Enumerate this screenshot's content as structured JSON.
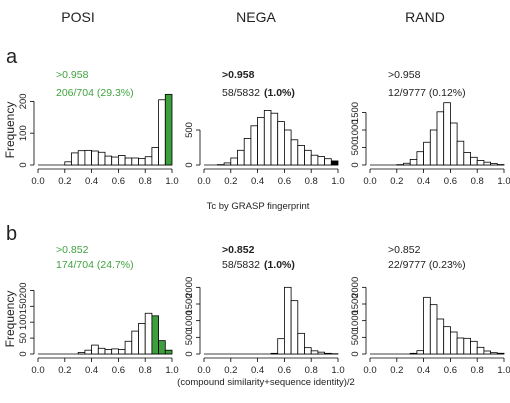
{
  "column_titles": [
    "POSI",
    "NEGA",
    "RAND"
  ],
  "row_labels": [
    "a",
    "b"
  ],
  "row_xlabels": [
    "Tc by GRASP fingerprint",
    "(compound similarity+sequence identity)/2"
  ],
  "colors": {
    "normal": "#ffffff",
    "highlight": "#3d9e3d",
    "nega_highlight": "#000000",
    "stroke": "#000000",
    "green_text": "#3fa33f"
  },
  "chart_data": [
    {
      "type": "bar",
      "row": "a",
      "column": "POSI",
      "threshold_label": ">0.958",
      "count_label": "206/704 (29.3%)",
      "text_color": "green",
      "bold_pct": false,
      "ylabel": "Frequency",
      "ylim": [
        0,
        220
      ],
      "yticks": [
        0,
        100,
        200
      ],
      "xlim": [
        0,
        1
      ],
      "xticks": [
        "0.0",
        "0.2",
        "0.4",
        "0.6",
        "0.8",
        "1.0"
      ],
      "bin_width": 0.05,
      "bin_starts": [
        0.0,
        0.05,
        0.1,
        0.15,
        0.2,
        0.25,
        0.3,
        0.35,
        0.4,
        0.45,
        0.5,
        0.55,
        0.6,
        0.65,
        0.7,
        0.75,
        0.8,
        0.85,
        0.9,
        0.95
      ],
      "values": [
        0,
        0,
        0,
        0,
        10,
        38,
        45,
        46,
        44,
        40,
        28,
        25,
        30,
        22,
        22,
        20,
        26,
        55,
        205,
        222
      ],
      "highlight_bins": [
        19
      ],
      "highlight_color": "highlight"
    },
    {
      "type": "bar",
      "row": "a",
      "column": "NEGA",
      "threshold_label": ">0.958",
      "count_label": "58/5832",
      "pct_label": "(1.0%)",
      "text_color": "black",
      "bold_pct": true,
      "ylabel": "",
      "ylim": [
        0,
        1000
      ],
      "yticks": [
        0,
        500
      ],
      "xlim": [
        0,
        1
      ],
      "xticks": [
        "0.0",
        "0.2",
        "0.4",
        "0.6",
        "0.8",
        "1.0"
      ],
      "bin_width": 0.05,
      "bin_starts": [
        0.0,
        0.05,
        0.1,
        0.15,
        0.2,
        0.25,
        0.3,
        0.35,
        0.4,
        0.45,
        0.5,
        0.55,
        0.6,
        0.65,
        0.7,
        0.75,
        0.8,
        0.85,
        0.9,
        0.95
      ],
      "values": [
        0,
        0,
        5,
        30,
        100,
        210,
        380,
        560,
        680,
        780,
        740,
        620,
        500,
        360,
        280,
        210,
        140,
        120,
        90,
        58
      ],
      "highlight_bins": [
        19
      ],
      "highlight_color": "nega_highlight"
    },
    {
      "type": "bar",
      "row": "a",
      "column": "RAND",
      "threshold_label": ">0.958",
      "count_label": "12/9777 (0.12%)",
      "text_color": "black",
      "bold_pct": false,
      "ylabel": "",
      "ylim": [
        0,
        2000
      ],
      "yticks": [
        0,
        500,
        1000,
        1500
      ],
      "xlim": [
        0,
        1
      ],
      "xticks": [
        "0.0",
        "0.2",
        "0.4",
        "0.6",
        "0.8",
        "1.0"
      ],
      "bin_width": 0.05,
      "bin_starts": [
        0.0,
        0.05,
        0.1,
        0.15,
        0.2,
        0.25,
        0.3,
        0.35,
        0.4,
        0.45,
        0.5,
        0.55,
        0.6,
        0.65,
        0.7,
        0.75,
        0.8,
        0.85,
        0.9,
        0.95
      ],
      "values": [
        0,
        0,
        0,
        0,
        10,
        50,
        160,
        380,
        650,
        1000,
        1520,
        1780,
        1200,
        680,
        360,
        220,
        130,
        80,
        40,
        12
      ],
      "highlight_bins": [],
      "highlight_color": "highlight"
    },
    {
      "type": "bar",
      "row": "b",
      "column": "POSI",
      "threshold_label": ">0.852",
      "count_label": "174/704 (24.7%)",
      "text_color": "green",
      "bold_pct": false,
      "ylabel": "Frequency",
      "ylim": [
        0,
        220
      ],
      "yticks": [
        0,
        50,
        100,
        150,
        200
      ],
      "xlim": [
        0,
        1
      ],
      "xticks": [
        "0.0",
        "0.2",
        "0.4",
        "0.6",
        "0.8",
        "1.0"
      ],
      "bin_width": 0.05,
      "bin_starts": [
        0.0,
        0.05,
        0.1,
        0.15,
        0.2,
        0.25,
        0.3,
        0.35,
        0.4,
        0.45,
        0.5,
        0.55,
        0.6,
        0.65,
        0.7,
        0.75,
        0.8,
        0.85,
        0.9,
        0.95
      ],
      "values": [
        0,
        0,
        0,
        0,
        0,
        0,
        5,
        12,
        28,
        18,
        14,
        16,
        14,
        40,
        72,
        96,
        128,
        120,
        42,
        12
      ],
      "highlight_bins": [
        17,
        18,
        19
      ],
      "highlight_color": "highlight"
    },
    {
      "type": "bar",
      "row": "b",
      "column": "NEGA",
      "threshold_label": ">0.852",
      "count_label": "58/5832",
      "pct_label": "(1.0%)",
      "text_color": "black",
      "bold_pct": true,
      "ylabel": "",
      "ylim": [
        0,
        2100
      ],
      "yticks": [
        0,
        500,
        1000,
        1500,
        2000
      ],
      "xlim": [
        0,
        1
      ],
      "xticks": [
        "0.0",
        "0.2",
        "0.4",
        "0.6",
        "0.8",
        "1.0"
      ],
      "bin_width": 0.05,
      "bin_starts": [
        0.0,
        0.05,
        0.1,
        0.15,
        0.2,
        0.25,
        0.3,
        0.35,
        0.4,
        0.45,
        0.5,
        0.55,
        0.6,
        0.65,
        0.7,
        0.75,
        0.8,
        0.85,
        0.9,
        0.95
      ],
      "values": [
        0,
        0,
        0,
        0,
        0,
        0,
        0,
        0,
        0,
        0,
        20,
        460,
        2000,
        1600,
        620,
        190,
        95,
        55,
        20,
        8
      ],
      "highlight_bins": [],
      "highlight_color": "nega_highlight"
    },
    {
      "type": "bar",
      "row": "b",
      "column": "RAND",
      "threshold_label": ">0.852",
      "count_label": "22/9777 (0.23%)",
      "text_color": "black",
      "bold_pct": false,
      "ylabel": "",
      "ylim": [
        0,
        2100
      ],
      "yticks": [
        0,
        500,
        1000,
        1500,
        2000
      ],
      "xlim": [
        0,
        1
      ],
      "xticks": [
        "0.0",
        "0.2",
        "0.4",
        "0.6",
        "0.8",
        "1.0"
      ],
      "bin_width": 0.05,
      "bin_starts": [
        0.0,
        0.05,
        0.1,
        0.15,
        0.2,
        0.25,
        0.3,
        0.35,
        0.4,
        0.45,
        0.5,
        0.55,
        0.6,
        0.65,
        0.7,
        0.75,
        0.8,
        0.85,
        0.9,
        0.95
      ],
      "values": [
        0,
        0,
        0,
        0,
        0,
        0,
        20,
        100,
        1700,
        1480,
        1050,
        820,
        660,
        480,
        470,
        380,
        200,
        90,
        40,
        22
      ],
      "highlight_bins": [],
      "highlight_color": "highlight"
    }
  ]
}
